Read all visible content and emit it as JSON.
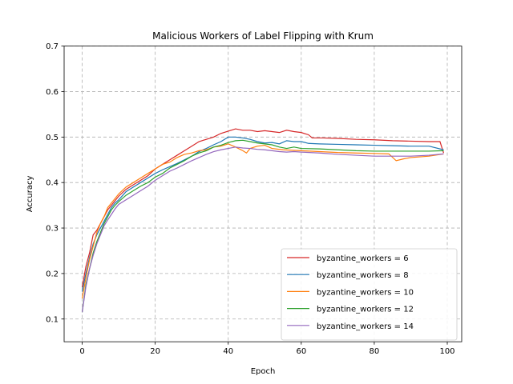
{
  "chart_data": {
    "type": "line",
    "title": "Malicious Workers of Label Flipping with Krum",
    "xlabel": "Epoch",
    "ylabel": "Accuracy",
    "xlim": [
      -4.95,
      103.95
    ],
    "ylim": [
      0.05,
      0.7
    ],
    "xticks": [
      0,
      20,
      40,
      60,
      80,
      100
    ],
    "yticks": [
      0.1,
      0.2,
      0.3,
      0.4,
      0.5,
      0.6,
      0.7
    ],
    "xtick_labels": [
      "0",
      "20",
      "40",
      "60",
      "80",
      "100"
    ],
    "ytick_labels": [
      "0.1",
      "0.2",
      "0.3",
      "0.4",
      "0.5",
      "0.6",
      "0.7"
    ],
    "grid": true,
    "legend_position": "lower-right",
    "series": [
      {
        "name": "byzantine_workers = 6",
        "color": "#d62728",
        "points": [
          [
            0,
            0.17
          ],
          [
            1,
            0.215
          ],
          [
            2,
            0.245
          ],
          [
            3,
            0.285
          ],
          [
            4,
            0.295
          ],
          [
            5,
            0.31
          ],
          [
            6,
            0.325
          ],
          [
            7,
            0.34
          ],
          [
            8,
            0.35
          ],
          [
            9,
            0.36
          ],
          [
            10,
            0.37
          ],
          [
            12,
            0.385
          ],
          [
            14,
            0.395
          ],
          [
            16,
            0.405
          ],
          [
            18,
            0.415
          ],
          [
            20,
            0.43
          ],
          [
            22,
            0.44
          ],
          [
            24,
            0.45
          ],
          [
            26,
            0.46
          ],
          [
            28,
            0.47
          ],
          [
            30,
            0.48
          ],
          [
            32,
            0.49
          ],
          [
            34,
            0.495
          ],
          [
            36,
            0.5
          ],
          [
            38,
            0.508
          ],
          [
            40,
            0.513
          ],
          [
            42,
            0.518
          ],
          [
            44,
            0.515
          ],
          [
            46,
            0.515
          ],
          [
            48,
            0.512
          ],
          [
            50,
            0.514
          ],
          [
            52,
            0.512
          ],
          [
            54,
            0.51
          ],
          [
            56,
            0.515
          ],
          [
            58,
            0.512
          ],
          [
            60,
            0.51
          ],
          [
            62,
            0.505
          ],
          [
            63,
            0.498
          ],
          [
            66,
            0.498
          ],
          [
            70,
            0.497
          ],
          [
            75,
            0.495
          ],
          [
            80,
            0.494
          ],
          [
            85,
            0.492
          ],
          [
            90,
            0.491
          ],
          [
            95,
            0.49
          ],
          [
            98,
            0.49
          ],
          [
            99,
            0.465
          ]
        ]
      },
      {
        "name": "byzantine_workers = 8",
        "color": "#1f77b4",
        "points": [
          [
            0,
            0.16
          ],
          [
            1,
            0.2
          ],
          [
            2,
            0.235
          ],
          [
            3,
            0.265
          ],
          [
            4,
            0.285
          ],
          [
            5,
            0.3
          ],
          [
            6,
            0.315
          ],
          [
            7,
            0.33
          ],
          [
            8,
            0.345
          ],
          [
            9,
            0.355
          ],
          [
            10,
            0.362
          ],
          [
            12,
            0.38
          ],
          [
            14,
            0.39
          ],
          [
            16,
            0.4
          ],
          [
            18,
            0.41
          ],
          [
            20,
            0.42
          ],
          [
            22,
            0.428
          ],
          [
            24,
            0.435
          ],
          [
            26,
            0.442
          ],
          [
            28,
            0.45
          ],
          [
            30,
            0.458
          ],
          [
            32,
            0.468
          ],
          [
            34,
            0.475
          ],
          [
            36,
            0.483
          ],
          [
            38,
            0.49
          ],
          [
            40,
            0.5
          ],
          [
            42,
            0.5
          ],
          [
            44,
            0.498
          ],
          [
            46,
            0.495
          ],
          [
            48,
            0.49
          ],
          [
            50,
            0.487
          ],
          [
            52,
            0.488
          ],
          [
            54,
            0.485
          ],
          [
            56,
            0.492
          ],
          [
            58,
            0.49
          ],
          [
            60,
            0.49
          ],
          [
            62,
            0.486
          ],
          [
            65,
            0.485
          ],
          [
            70,
            0.484
          ],
          [
            75,
            0.483
          ],
          [
            80,
            0.482
          ],
          [
            85,
            0.481
          ],
          [
            90,
            0.48
          ],
          [
            95,
            0.48
          ],
          [
            99,
            0.472
          ]
        ]
      },
      {
        "name": "byzantine_workers = 10",
        "color": "#ff7f0e",
        "points": [
          [
            0,
            0.145
          ],
          [
            1,
            0.19
          ],
          [
            2,
            0.23
          ],
          [
            3,
            0.26
          ],
          [
            4,
            0.29
          ],
          [
            5,
            0.31
          ],
          [
            6,
            0.325
          ],
          [
            7,
            0.345
          ],
          [
            8,
            0.355
          ],
          [
            9,
            0.365
          ],
          [
            10,
            0.375
          ],
          [
            12,
            0.39
          ],
          [
            14,
            0.4
          ],
          [
            16,
            0.41
          ],
          [
            18,
            0.42
          ],
          [
            20,
            0.43
          ],
          [
            22,
            0.44
          ],
          [
            24,
            0.445
          ],
          [
            26,
            0.455
          ],
          [
            28,
            0.462
          ],
          [
            30,
            0.465
          ],
          [
            32,
            0.47
          ],
          [
            34,
            0.472
          ],
          [
            36,
            0.478
          ],
          [
            38,
            0.48
          ],
          [
            40,
            0.485
          ],
          [
            42,
            0.478
          ],
          [
            44,
            0.47
          ],
          [
            45,
            0.465
          ],
          [
            46,
            0.475
          ],
          [
            48,
            0.48
          ],
          [
            50,
            0.482
          ],
          [
            52,
            0.475
          ],
          [
            55,
            0.472
          ],
          [
            60,
            0.47
          ],
          [
            65,
            0.468
          ],
          [
            70,
            0.466
          ],
          [
            75,
            0.465
          ],
          [
            80,
            0.464
          ],
          [
            84,
            0.463
          ],
          [
            86,
            0.448
          ],
          [
            88,
            0.452
          ],
          [
            90,
            0.455
          ],
          [
            95,
            0.458
          ],
          [
            99,
            0.463
          ]
        ]
      },
      {
        "name": "byzantine_workers = 12",
        "color": "#2ca02c",
        "points": [
          [
            0,
            0.115
          ],
          [
            1,
            0.175
          ],
          [
            2,
            0.21
          ],
          [
            3,
            0.245
          ],
          [
            4,
            0.27
          ],
          [
            5,
            0.29
          ],
          [
            6,
            0.31
          ],
          [
            7,
            0.325
          ],
          [
            8,
            0.34
          ],
          [
            9,
            0.35
          ],
          [
            10,
            0.358
          ],
          [
            12,
            0.372
          ],
          [
            14,
            0.382
          ],
          [
            16,
            0.392
          ],
          [
            18,
            0.4
          ],
          [
            20,
            0.412
          ],
          [
            22,
            0.42
          ],
          [
            24,
            0.432
          ],
          [
            26,
            0.44
          ],
          [
            28,
            0.448
          ],
          [
            30,
            0.458
          ],
          [
            32,
            0.465
          ],
          [
            34,
            0.47
          ],
          [
            36,
            0.478
          ],
          [
            38,
            0.482
          ],
          [
            40,
            0.488
          ],
          [
            42,
            0.492
          ],
          [
            44,
            0.493
          ],
          [
            46,
            0.49
          ],
          [
            48,
            0.487
          ],
          [
            50,
            0.485
          ],
          [
            52,
            0.483
          ],
          [
            54,
            0.478
          ],
          [
            56,
            0.475
          ],
          [
            58,
            0.478
          ],
          [
            60,
            0.475
          ],
          [
            65,
            0.474
          ],
          [
            70,
            0.472
          ],
          [
            75,
            0.47
          ],
          [
            80,
            0.469
          ],
          [
            85,
            0.469
          ],
          [
            90,
            0.469
          ],
          [
            95,
            0.469
          ],
          [
            99,
            0.47
          ]
        ]
      },
      {
        "name": "byzantine_workers = 14",
        "color": "#9467bd",
        "points": [
          [
            0,
            0.115
          ],
          [
            1,
            0.17
          ],
          [
            2,
            0.21
          ],
          [
            3,
            0.24
          ],
          [
            4,
            0.265
          ],
          [
            5,
            0.285
          ],
          [
            6,
            0.305
          ],
          [
            7,
            0.318
          ],
          [
            8,
            0.33
          ],
          [
            9,
            0.342
          ],
          [
            10,
            0.352
          ],
          [
            12,
            0.362
          ],
          [
            14,
            0.372
          ],
          [
            16,
            0.382
          ],
          [
            18,
            0.392
          ],
          [
            20,
            0.405
          ],
          [
            22,
            0.415
          ],
          [
            24,
            0.425
          ],
          [
            26,
            0.432
          ],
          [
            28,
            0.44
          ],
          [
            30,
            0.448
          ],
          [
            32,
            0.455
          ],
          [
            34,
            0.462
          ],
          [
            36,
            0.468
          ],
          [
            38,
            0.472
          ],
          [
            40,
            0.475
          ],
          [
            42,
            0.478
          ],
          [
            44,
            0.476
          ],
          [
            46,
            0.475
          ],
          [
            48,
            0.473
          ],
          [
            50,
            0.472
          ],
          [
            52,
            0.47
          ],
          [
            54,
            0.468
          ],
          [
            56,
            0.467
          ],
          [
            58,
            0.468
          ],
          [
            60,
            0.467
          ],
          [
            65,
            0.465
          ],
          [
            70,
            0.462
          ],
          [
            75,
            0.46
          ],
          [
            80,
            0.458
          ],
          [
            85,
            0.458
          ],
          [
            90,
            0.458
          ],
          [
            95,
            0.46
          ],
          [
            99,
            0.463
          ]
        ]
      }
    ]
  }
}
